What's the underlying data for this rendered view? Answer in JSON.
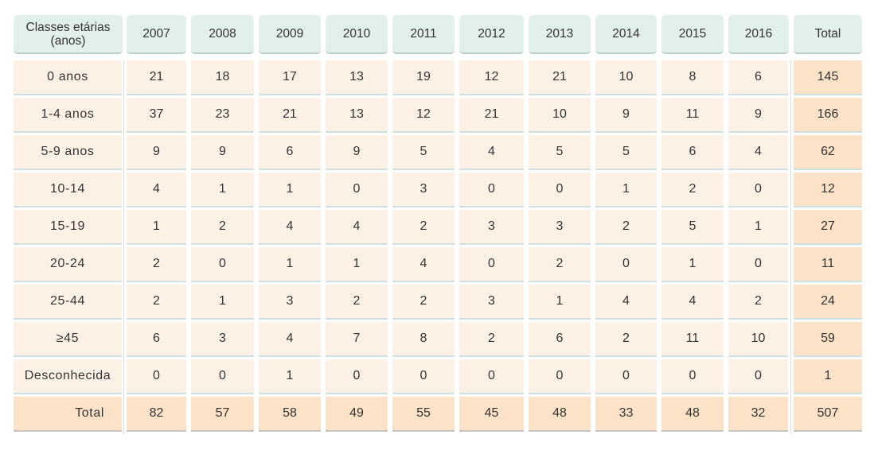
{
  "table": {
    "header": {
      "first_line1": "Classes etárias",
      "first_line2": "(anos)",
      "years": [
        "2007",
        "2008",
        "2009",
        "2010",
        "2011",
        "2012",
        "2013",
        "2014",
        "2015",
        "2016"
      ],
      "total": "Total"
    },
    "rows": [
      {
        "label": "0 anos",
        "values": [
          "21",
          "18",
          "17",
          "13",
          "19",
          "12",
          "21",
          "10",
          "8",
          "6"
        ],
        "total": "145"
      },
      {
        "label": "1-4 anos",
        "values": [
          "37",
          "23",
          "21",
          "13",
          "12",
          "21",
          "10",
          "9",
          "11",
          "9"
        ],
        "total": "166"
      },
      {
        "label": "5-9 anos",
        "values": [
          "9",
          "9",
          "6",
          "9",
          "5",
          "4",
          "5",
          "5",
          "6",
          "4"
        ],
        "total": "62"
      },
      {
        "label": "10-14",
        "values": [
          "4",
          "1",
          "1",
          "0",
          "3",
          "0",
          "0",
          "1",
          "2",
          "0"
        ],
        "total": "12"
      },
      {
        "label": "15-19",
        "values": [
          "1",
          "2",
          "4",
          "4",
          "2",
          "3",
          "3",
          "2",
          "5",
          "1"
        ],
        "total": "27"
      },
      {
        "label": "20-24",
        "values": [
          "2",
          "0",
          "1",
          "1",
          "4",
          "0",
          "2",
          "0",
          "1",
          "0"
        ],
        "total": "11"
      },
      {
        "label": "25-44",
        "values": [
          "2",
          "1",
          "3",
          "2",
          "2",
          "3",
          "1",
          "4",
          "4",
          "2"
        ],
        "total": "24"
      },
      {
        "label": "≥45",
        "values": [
          "6",
          "3",
          "4",
          "7",
          "8",
          "2",
          "6",
          "2",
          "11",
          "10"
        ],
        "total": "59"
      },
      {
        "label": "Desconhecida",
        "values": [
          "0",
          "0",
          "1",
          "0",
          "0",
          "0",
          "0",
          "0",
          "0",
          "0"
        ],
        "total": "1"
      }
    ],
    "totals": {
      "label": "Total",
      "values": [
        "82",
        "57",
        "58",
        "49",
        "55",
        "45",
        "48",
        "33",
        "48",
        "32"
      ],
      "total": "507"
    }
  }
}
